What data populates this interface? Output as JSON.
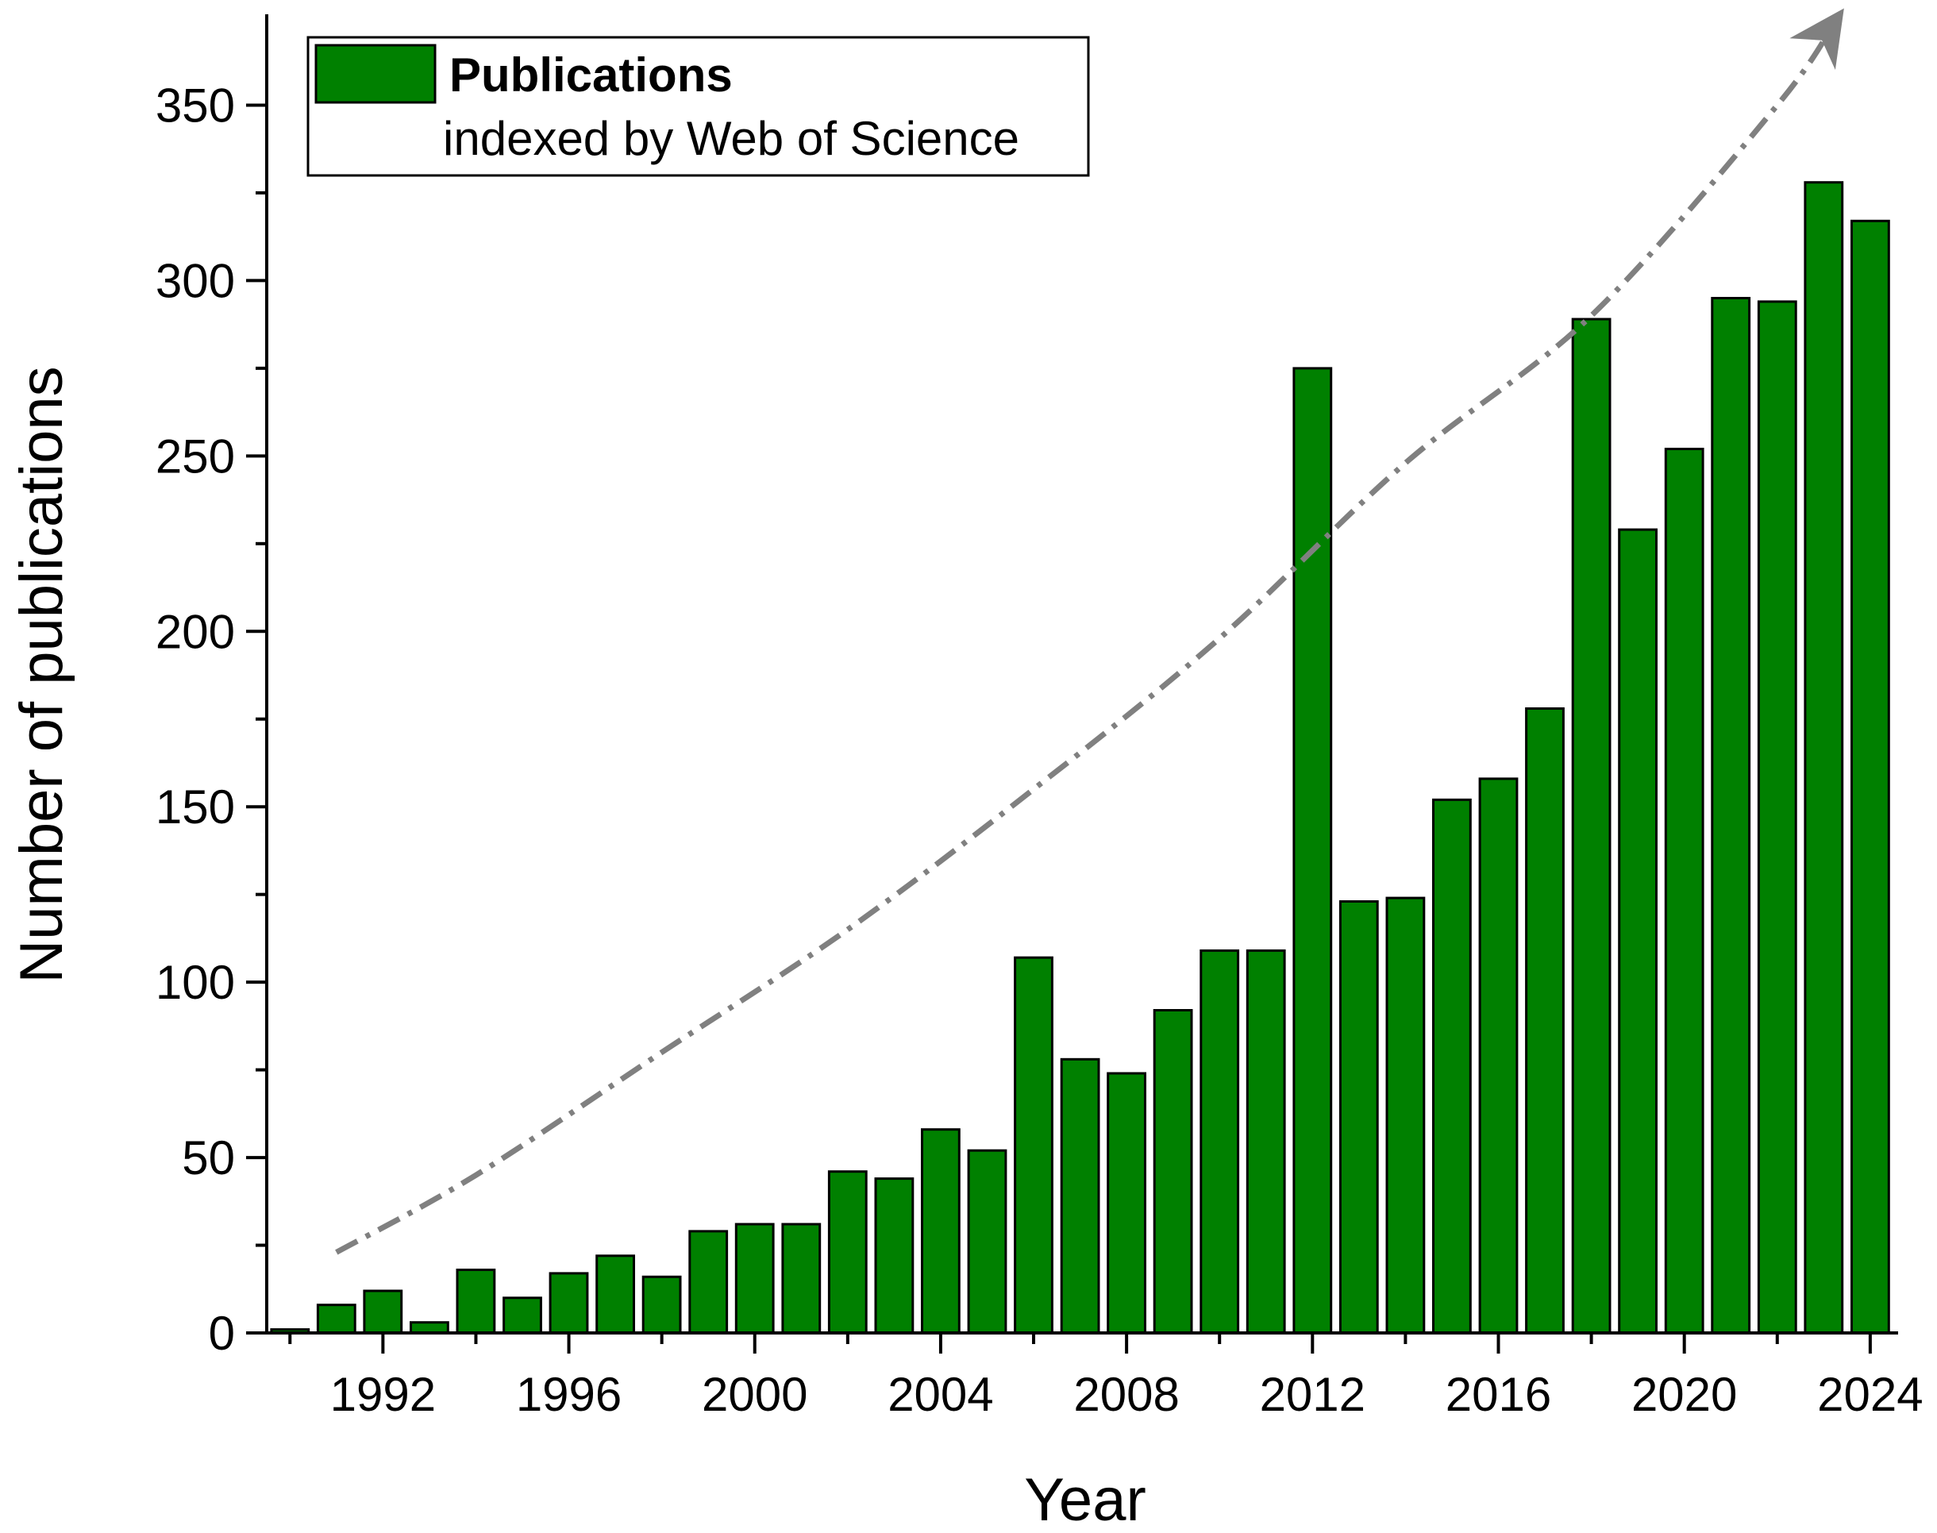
{
  "chart_data": {
    "type": "bar",
    "title": "",
    "xlabel": "Year",
    "ylabel": "Number of publications",
    "x": [
      1990,
      1991,
      1992,
      1993,
      1994,
      1995,
      1996,
      1997,
      1998,
      1999,
      2000,
      2001,
      2002,
      2003,
      2004,
      2005,
      2006,
      2007,
      2008,
      2009,
      2010,
      2011,
      2012,
      2013,
      2014,
      2015,
      2016,
      2017,
      2018,
      2019,
      2020,
      2021,
      2022,
      2023,
      2024
    ],
    "values": [
      1,
      8,
      12,
      3,
      18,
      10,
      17,
      22,
      16,
      29,
      31,
      31,
      46,
      44,
      58,
      52,
      107,
      78,
      74,
      92,
      109,
      109,
      275,
      123,
      124,
      152,
      158,
      178,
      289,
      229,
      252,
      295,
      294,
      328,
      317
    ],
    "xlim": [
      1989.5,
      2024.6
    ],
    "ylim": [
      0,
      375
    ],
    "xticks": [
      1992,
      1996,
      2000,
      2004,
      2008,
      2012,
      2016,
      2020,
      2024
    ],
    "yticks": [
      0,
      50,
      100,
      150,
      200,
      250,
      300,
      350
    ],
    "grid": false,
    "bar_color": "#008000",
    "legend": {
      "position": "top-left",
      "title": "Publications",
      "subtitle": "indexed by Web of Science"
    },
    "trend": {
      "style": "dash-dot arrow",
      "color": "#808080",
      "x": [
        1991,
        1994,
        1998,
        2002,
        2006,
        2010,
        2014,
        2018,
        2022,
        2023.3
      ],
      "y": [
        23,
        45,
        80,
        115,
        155,
        198,
        248,
        290,
        350,
        375
      ]
    }
  }
}
